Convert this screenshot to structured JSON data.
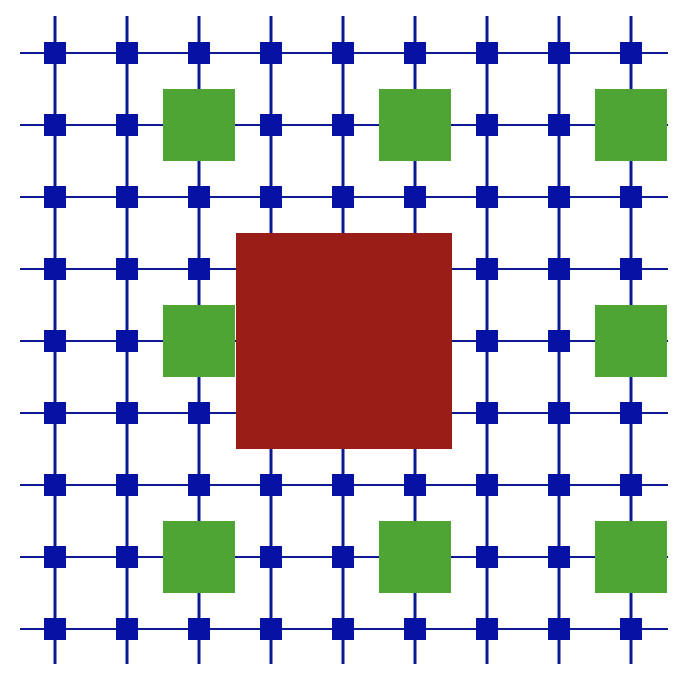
{
  "diagram": {
    "grid_size": 9,
    "colors": {
      "grid_line": "#0b1a93",
      "node": "#0511a2",
      "small_block": "#4ea534",
      "large_block": "#991e17",
      "background": "#ffffff"
    },
    "small_blocks": [
      {
        "col": 1,
        "row": 1
      },
      {
        "col": 4,
        "row": 1
      },
      {
        "col": 7,
        "row": 1
      },
      {
        "col": 1,
        "row": 4
      },
      {
        "col": 7,
        "row": 4
      },
      {
        "col": 1,
        "row": 7
      },
      {
        "col": 4,
        "row": 7
      },
      {
        "col": 7,
        "row": 7
      }
    ],
    "large_block": {
      "col": 3,
      "row": 3,
      "span": 3
    }
  }
}
